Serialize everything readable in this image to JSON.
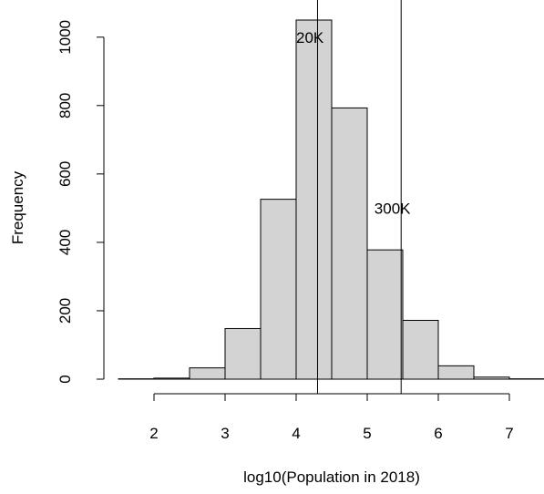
{
  "chart_data": {
    "type": "bar",
    "title": "",
    "xlabel": "log10(Population in 2018)",
    "ylabel": "Frequency",
    "bin_edges": [
      1.5,
      2.0,
      2.5,
      3.0,
      3.5,
      4.0,
      4.5,
      5.0,
      5.5,
      6.0,
      6.5,
      7.0,
      7.5
    ],
    "values": [
      1,
      3,
      33,
      148,
      526,
      1050,
      793,
      378,
      172,
      39,
      6,
      1
    ],
    "xlim": [
      1.5,
      7.5
    ],
    "ylim": [
      0,
      1050
    ],
    "x_ticks": [
      2,
      3,
      4,
      5,
      6,
      7
    ],
    "y_ticks": [
      0,
      200,
      400,
      600,
      800,
      1000
    ],
    "grid": false,
    "annotations": [
      {
        "x": 4.30103,
        "label": "20K",
        "label_x": 4.0,
        "label_y": 1000
      },
      {
        "x": 5.477121,
        "label": "300K",
        "label_x": 5.1,
        "label_y": 500
      }
    ]
  }
}
